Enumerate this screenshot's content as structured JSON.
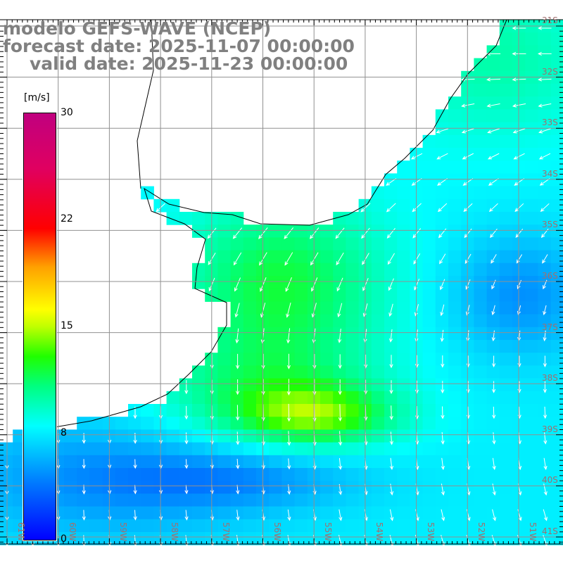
{
  "title": {
    "model": "modelo GEFS-WAVE (NCEP)",
    "forecast": "forecast date: 2025-11-07 00:00:00",
    "valid": "valid date: 2025-11-23 00:00:00"
  },
  "colorbar": {
    "unit": "[m/s]",
    "labels": [
      "30",
      "22",
      "15",
      "8",
      "0"
    ],
    "colors": [
      "#0000ff",
      "#00ffff",
      "#20ff00",
      "#ffff00",
      "#ff0000",
      "#c0007f"
    ]
  },
  "lat_labels": [
    "31S",
    "32S",
    "33S",
    "34S",
    "35S",
    "36S",
    "37S",
    "38S",
    "39S",
    "40S",
    "41S"
  ],
  "lon_labels": [
    "61W",
    "60W",
    "59W",
    "58W",
    "57W",
    "56W",
    "55W",
    "54W",
    "53W",
    "52W",
    "51W"
  ],
  "colors": {
    "land": "#ffffff",
    "grid": "#909090",
    "coast": "#000000",
    "arrow": "#ffffff"
  }
}
